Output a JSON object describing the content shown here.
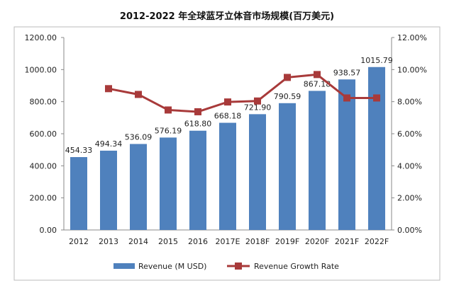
{
  "chart_data": {
    "type": "bar+line",
    "title": "2012-2022  年全球蓝牙立体音市场规模(百万美元)",
    "categories": [
      "2012",
      "2013",
      "2014",
      "2015",
      "2016",
      "2017E",
      "2018F",
      "2019F",
      "2020F",
      "2021F",
      "2022F"
    ],
    "series": [
      {
        "name": "Revenue (M USD)",
        "type": "bar",
        "axis": "left",
        "color": "#4F81BD",
        "values": [
          454.33,
          494.34,
          536.09,
          576.19,
          618.8,
          668.18,
          721.9,
          790.59,
          867.18,
          938.57,
          1015.79
        ],
        "labels": [
          "454.33",
          "494.34",
          "536.09",
          "576.19",
          "618.80",
          "668.18",
          "721.90",
          "790.59",
          "867.18",
          "938.57",
          "1015.79"
        ]
      },
      {
        "name": "Revenue Growth Rate",
        "type": "line",
        "axis": "right",
        "color": "#A83A3A",
        "values": [
          null,
          8.81,
          8.45,
          7.48,
          7.37,
          7.98,
          8.04,
          9.51,
          9.69,
          8.23,
          8.23
        ]
      }
    ],
    "left_axis": {
      "range": [
        0,
        1200
      ],
      "ticks": [
        "0.00",
        "200.00",
        "400.00",
        "600.00",
        "800.00",
        "1000.00",
        "1200.00"
      ]
    },
    "right_axis": {
      "range": [
        0,
        12
      ],
      "unit": "%",
      "ticks": [
        "0.00%",
        "2.00%",
        "4.00%",
        "6.00%",
        "8.00%",
        "10.00%",
        "12.00%"
      ]
    },
    "grid": false,
    "legend": "bottom"
  }
}
